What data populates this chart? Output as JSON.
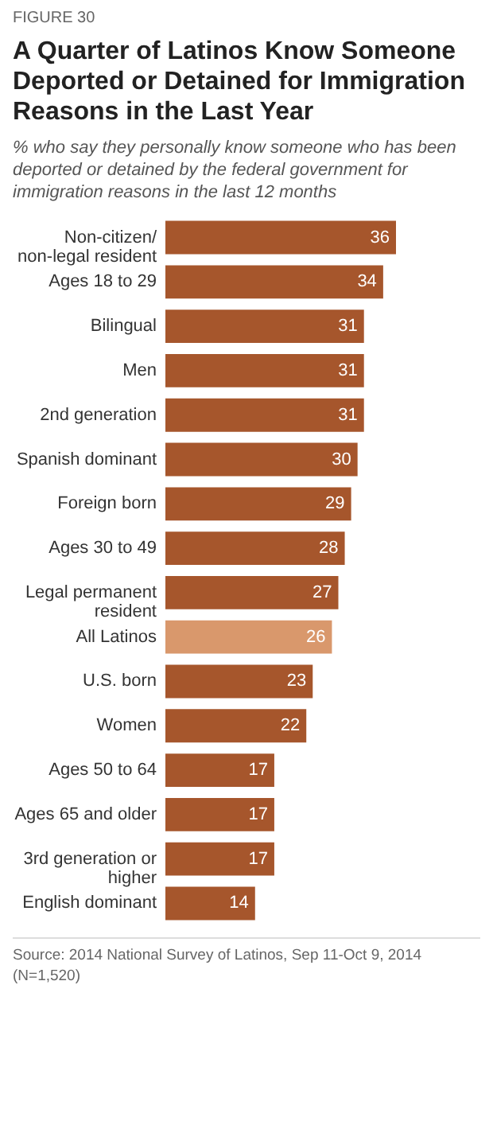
{
  "chart_data": {
    "type": "bar",
    "orientation": "horizontal",
    "title": "A Quarter of Latinos Know Someone Deported or Detained for Immigration Reasons in the Last Year",
    "subtitle": "% who say they personally know someone who has been deported or detained by the federal government for immigration reasons in the last 12 months",
    "categories": [
      "Non-citizen/ non-legal resident",
      "Ages 18 to 29",
      "Bilingual",
      "Men",
      "2nd generation",
      "Spanish dominant",
      "Foreign born",
      "Ages 30 to 49",
      "Legal permanent resident",
      "All Latinos",
      "U.S. born",
      "Women",
      "Ages 50 to 64",
      "Ages 65 and older",
      "3rd generation or higher",
      "English dominant"
    ],
    "values": [
      36,
      34,
      31,
      31,
      31,
      30,
      29,
      28,
      27,
      26,
      23,
      22,
      17,
      17,
      17,
      14
    ],
    "colors": [
      "#a6562c",
      "#a6562c",
      "#a6562c",
      "#a6562c",
      "#a6562c",
      "#a6562c",
      "#a6562c",
      "#a6562c",
      "#a6562c",
      "#d9986c",
      "#a6562c",
      "#a6562c",
      "#a6562c",
      "#a6562c",
      "#a6562c",
      "#a6562c"
    ],
    "data_labels": true,
    "annotations": [
      "FIGURE 30",
      "Source: 2014 National Survey of Latinos, Sep 11-Oct 9, 2014 (N=1,520)"
    ]
  }
}
